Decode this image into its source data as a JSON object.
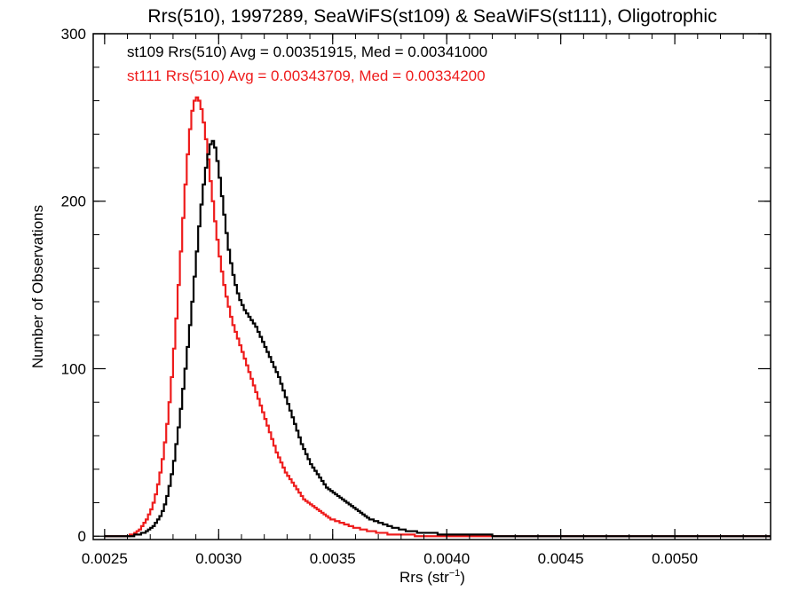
{
  "chart_data": {
    "type": "line",
    "step": true,
    "title": "Rrs(510), 1997289, SeaWiFS(st109) & SeaWiFS(st111), Oligotrophic",
    "xlabel": {
      "main": "Rrs (str",
      "sup": "−1",
      "close": ")"
    },
    "ylabel": "Number of Observations",
    "xlim": [
      0.00245,
      0.00542
    ],
    "ylim": [
      -2,
      300
    ],
    "bin_width": 1e-05,
    "x_start": 0.0025,
    "xticks": [
      {
        "value": 0.0025,
        "label": "0.0025"
      },
      {
        "value": 0.003,
        "label": "0.0030"
      },
      {
        "value": 0.0035,
        "label": "0.0035"
      },
      {
        "value": 0.004,
        "label": "0.0040"
      },
      {
        "value": 0.0045,
        "label": "0.0045"
      },
      {
        "value": 0.005,
        "label": "0.0050"
      }
    ],
    "yticks": [
      {
        "value": 0,
        "label": "0"
      },
      {
        "value": 100,
        "label": "100"
      },
      {
        "value": 200,
        "label": "200"
      },
      {
        "value": 300,
        "label": "300"
      }
    ],
    "legend_position": "top-left",
    "series": [
      {
        "id": "st109",
        "legend": "st109 Rrs(510) Avg = 0.00351915, Med = 0.00341000",
        "color": "#000000",
        "values": [
          0,
          0,
          0,
          0,
          0,
          0,
          0,
          0,
          0,
          0,
          0,
          0,
          0,
          1,
          1,
          1,
          2,
          2,
          3,
          4,
          5,
          6,
          8,
          10,
          12,
          15,
          19,
          24,
          30,
          37,
          45,
          55,
          65,
          76,
          88,
          100,
          113,
          126,
          140,
          155,
          170,
          185,
          198,
          210,
          220,
          228,
          234,
          236,
          232,
          224,
          214,
          203,
          192,
          181,
          171,
          163,
          156,
          150,
          145,
          141,
          138,
          135,
          133,
          131,
          129,
          127,
          125,
          122,
          119,
          116,
          113,
          110,
          107,
          104,
          101,
          98,
          95,
          91,
          87,
          83,
          79,
          75,
          71,
          67,
          63,
          59,
          55,
          52,
          49,
          46,
          43,
          41,
          39,
          37,
          35,
          33,
          31,
          29,
          28,
          27,
          26,
          25,
          24,
          23,
          22,
          21,
          20,
          19,
          18,
          17,
          16,
          15,
          14,
          13,
          12,
          11,
          10,
          10,
          9,
          9,
          8,
          8,
          7,
          7,
          6,
          6,
          5,
          5,
          5,
          4,
          4,
          4,
          3,
          3,
          3,
          3,
          3,
          2,
          2,
          2,
          2,
          2,
          2,
          2,
          2,
          2,
          1,
          1,
          1,
          1,
          1,
          1,
          1,
          1,
          1,
          1,
          1,
          1,
          1,
          1,
          1,
          1,
          1,
          1,
          1,
          1,
          1,
          1,
          1,
          1,
          0,
          0,
          0,
          0,
          0,
          0,
          0,
          0,
          0,
          0,
          0,
          0,
          0,
          0,
          0,
          0,
          0,
          0,
          0,
          0,
          0,
          0,
          0,
          0,
          0,
          0,
          0,
          0,
          0,
          0,
          0,
          0,
          0,
          0,
          0,
          0,
          0,
          0,
          0,
          0,
          0,
          0,
          0,
          0,
          0,
          0,
          0,
          0,
          0,
          0,
          0,
          0,
          0,
          0,
          0,
          0,
          0,
          0,
          0,
          0,
          0,
          0,
          0,
          0,
          0,
          0,
          0,
          0,
          0,
          0,
          0,
          0,
          0,
          0,
          0,
          0,
          0,
          0,
          0,
          0,
          0,
          0,
          0,
          0,
          0,
          0,
          0,
          0,
          0,
          0,
          0,
          0,
          0,
          0,
          0,
          0,
          0,
          0,
          0,
          0,
          0,
          0,
          0,
          0,
          0,
          0,
          0,
          0,
          0,
          0,
          0,
          0,
          0,
          0,
          0,
          0,
          0,
          0,
          0,
          0,
          0,
          0,
          0,
          0,
          0,
          0,
          0,
          0,
          0,
          0,
          0,
          0,
          0,
          0,
          0
        ]
      },
      {
        "id": "st111",
        "legend": "st111 Rrs(510) Avg = 0.00343709, Med = 0.00334200",
        "color": "#ee1c1c",
        "values": [
          0,
          0,
          0,
          0,
          0,
          0,
          0,
          0,
          0,
          0,
          0,
          1,
          1,
          2,
          3,
          4,
          6,
          8,
          10,
          13,
          16,
          20,
          25,
          31,
          38,
          46,
          56,
          67,
          80,
          95,
          112,
          130,
          150,
          170,
          190,
          210,
          228,
          243,
          254,
          260,
          262,
          260,
          255,
          247,
          237,
          225,
          212,
          200,
          188,
          177,
          167,
          158,
          150,
          143,
          137,
          131,
          126,
          122,
          118,
          114,
          110,
          106,
          102,
          98,
          94,
          90,
          86,
          82,
          78,
          74,
          70,
          66,
          62,
          58,
          54,
          50,
          47,
          44,
          41,
          38,
          36,
          34,
          32,
          30,
          28,
          26,
          24,
          22,
          21,
          20,
          19,
          18,
          17,
          16,
          15,
          14,
          13,
          12,
          11,
          10,
          10,
          9,
          9,
          8,
          8,
          7,
          7,
          6,
          6,
          5,
          5,
          5,
          4,
          4,
          4,
          3,
          3,
          3,
          3,
          2,
          2,
          2,
          2,
          2,
          1,
          1,
          1,
          1,
          1,
          1,
          1,
          1,
          1,
          1,
          1,
          1,
          0,
          0,
          0,
          0,
          0,
          0,
          0,
          0,
          0,
          0,
          0,
          0,
          0,
          0,
          0,
          0,
          0,
          0,
          0,
          0,
          0,
          0,
          0,
          0,
          0,
          0,
          0,
          0,
          0,
          0,
          0,
          0,
          0,
          0,
          0,
          0,
          0,
          0,
          0,
          0,
          0,
          0,
          0,
          0,
          0,
          0,
          0,
          0,
          0,
          0,
          0,
          0,
          0,
          0,
          0,
          0,
          0,
          0,
          0,
          0,
          0,
          0,
          0,
          0,
          0,
          0,
          0,
          0,
          0,
          0,
          0,
          0,
          0,
          0,
          0,
          0,
          0,
          0,
          0,
          0,
          0,
          0,
          0,
          0,
          0,
          0,
          0,
          0,
          0,
          0,
          0,
          0,
          0,
          0,
          0,
          0,
          0,
          0,
          0,
          0,
          0,
          0,
          0,
          0,
          0,
          0,
          0,
          0,
          0,
          0,
          0,
          0,
          0,
          0,
          0,
          0,
          0,
          0,
          0,
          0,
          0,
          0,
          0,
          0,
          0,
          0,
          0,
          0,
          0,
          0,
          0,
          0,
          0,
          0,
          0,
          0,
          0,
          0,
          0,
          0,
          0,
          0,
          0,
          0,
          0,
          0,
          0,
          0,
          0,
          0,
          0,
          0,
          0,
          0,
          0,
          0,
          0,
          0,
          0,
          0
        ]
      }
    ]
  }
}
